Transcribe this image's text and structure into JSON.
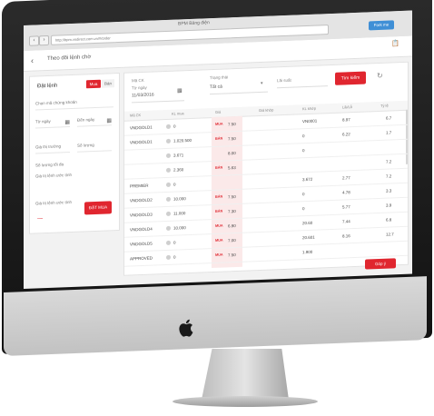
{
  "browser": {
    "tab_title": "BPM Bảng điện",
    "url": "http://bpm.vndirect.com.vn/#/order",
    "back": "‹",
    "forward": "›",
    "github_button": "Fork me"
  },
  "app": {
    "back_icon": "‹",
    "title": "Theo dõi lệnh chờ",
    "doc_icon": "📋"
  },
  "order_panel": {
    "title": "Đặt lệnh",
    "buy_tab": "Mua",
    "sell_tab": "Bán",
    "symbol_placeholder": "Chọn mã chứng khoán",
    "from_date": "Từ ngày",
    "to_date": "Đến ngày",
    "price_label": "Giá thị trường",
    "quantity_label": "Số lượng",
    "max_qty_label": "Số lượng tối đa",
    "value_label": "Giá trị lệnh ước tính",
    "dash": "—",
    "submit": "ĐẶT MUA"
  },
  "filters": {
    "code_label": "Mã CK",
    "date_label": "Từ ngày",
    "date_value": "11/03/2016",
    "status_label": "Trạng thái",
    "status_value": "Tất cả",
    "account_label": "Lãi suất",
    "search_button": "Tìm kiếm",
    "refresh_icon": "↻"
  },
  "table": {
    "headers": [
      "Mã CK",
      "KL mua",
      "Giá",
      "Giá khớp",
      "KL khớp",
      "Lãi/Lỗ",
      "Tỷ lệ"
    ],
    "rows": [
      {
        "code": "VNDGOLD1",
        "vol": "0",
        "side": "MUA",
        "price": "7.50",
        "match": "VN0001",
        "pl": "8.97",
        "pct": "6.7"
      },
      {
        "code": "VNDGOLD1",
        "vol": "1.020.500",
        "side": "BÁN",
        "price": "7.50",
        "match": "0",
        "pl": "6.22",
        "pct": "1.7"
      },
      {
        "code": "",
        "vol": "3.671",
        "side": "",
        "price": "8.00",
        "match": "0",
        "pl": "",
        "pct": ""
      },
      {
        "code": "",
        "vol": "2.360",
        "side": "BÁN",
        "price": "5.63",
        "match": "",
        "pl": "",
        "pct": "7.2"
      },
      {
        "code": "PREMIER",
        "vol": "0",
        "side": "",
        "price": "",
        "match": "3.672",
        "pl": "2.77",
        "pct": "7.2"
      },
      {
        "code": "VNDGOLD2",
        "vol": "10.000",
        "side": "BÁN",
        "price": "7.50",
        "match": "0",
        "pl": "4.78",
        "pct": "3.3"
      },
      {
        "code": "VNDGOLD3",
        "vol": "11.000",
        "side": "BÁN",
        "price": "7.30",
        "match": "0",
        "pl": "5.77",
        "pct": "3.9"
      },
      {
        "code": "VNDGOLD4",
        "vol": "10.000",
        "side": "MUA",
        "price": "6.90",
        "match": "20.60",
        "pl": "7.44",
        "pct": "6.8"
      },
      {
        "code": "VNDGOLD5",
        "vol": "0",
        "side": "MUA",
        "price": "7.00",
        "match": "20.601",
        "pl": "8.16",
        "pct": "12.7"
      },
      {
        "code": "APPROVED",
        "vol": "0",
        "side": "MUA",
        "price": "7.50",
        "match": "1.900",
        "pl": "",
        "pct": ""
      }
    ]
  },
  "feedback_button": "Góp ý",
  "colors": {
    "accent": "#e0262f",
    "bezel": "#1c1c1c",
    "aluminium": "#cfcfcf"
  }
}
